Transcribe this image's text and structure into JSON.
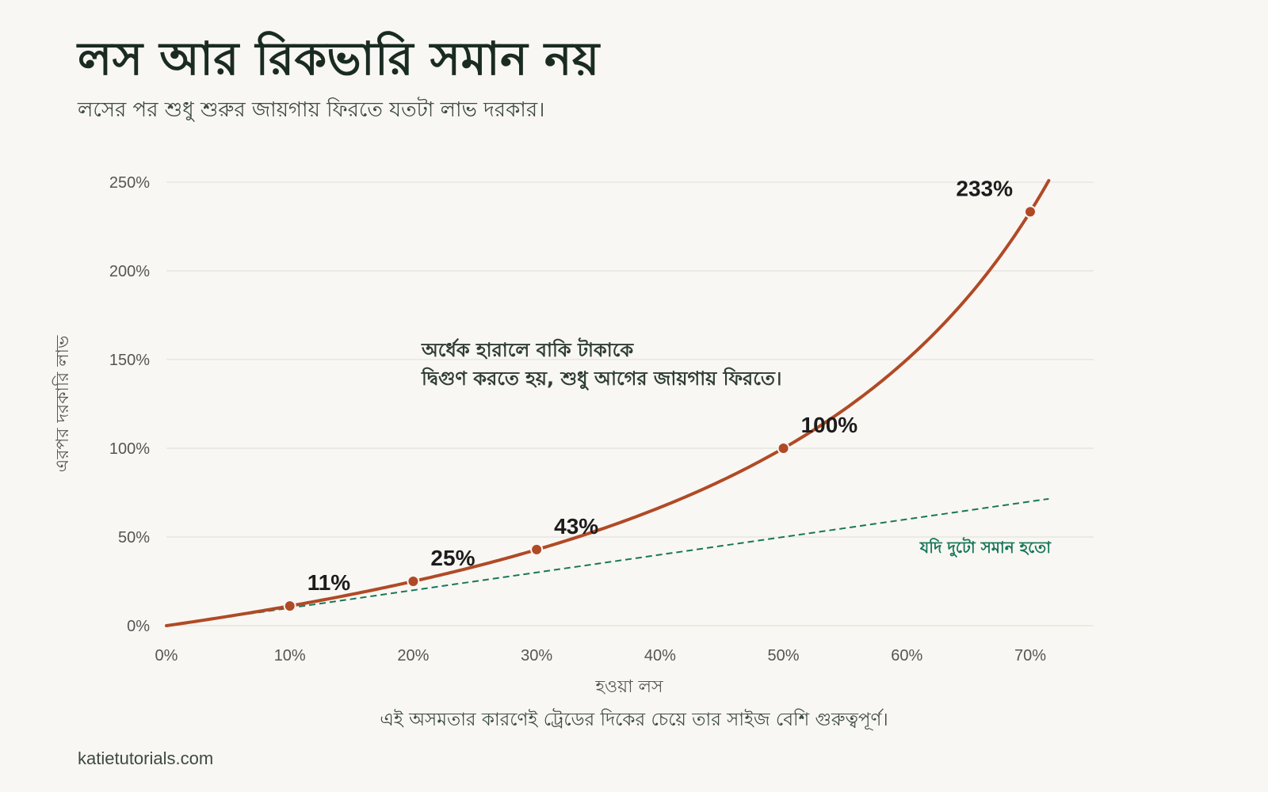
{
  "header": {
    "title": "লস আর রিকভারি সমান নয়",
    "subtitle": "লসের পর শুধু শুরুর জায়গায় ফিরতে যতটা লাভ দরকার।"
  },
  "footer": {
    "note": "এই অসমতার কারণেই ট্রেডের দিকের চেয়ে তার সাইজ বেশি গুরুত্বপূর্ণ।",
    "brand": "katietutorials.com"
  },
  "colors": {
    "curve": "#b04a26",
    "reference": "#17775a",
    "grid": "#e3e1dc",
    "background": "#f9f7f3"
  },
  "chart_data": {
    "type": "line",
    "xlabel": "হওয়া লস",
    "ylabel": "এরপর দরকারি লাভ",
    "xlim": [
      0,
      75
    ],
    "ylim": [
      0,
      250
    ],
    "xticks": [
      0,
      10,
      20,
      30,
      40,
      50,
      60,
      70
    ],
    "yticks": [
      0,
      50,
      100,
      150,
      200,
      250
    ],
    "xtick_labels": [
      "0%",
      "10%",
      "20%",
      "30%",
      "40%",
      "50%",
      "60%",
      "70%"
    ],
    "ytick_labels": [
      "0%",
      "50%",
      "100%",
      "150%",
      "200%",
      "250%"
    ],
    "grid": "horizontal",
    "series": [
      {
        "type": "curve",
        "formula": "x / (100 - x) * 100",
        "x_range": [
          0,
          71.5
        ]
      },
      {
        "name": "যদি দুটো সমান হতো",
        "type": "reference-line",
        "formula": "x",
        "x_range": [
          0,
          71.5
        ],
        "style": "dashed"
      }
    ],
    "highlighted_points": [
      {
        "x": 10,
        "y": 11.1,
        "label": "11%"
      },
      {
        "x": 20,
        "y": 25,
        "label": "25%"
      },
      {
        "x": 30,
        "y": 42.9,
        "label": "43%"
      },
      {
        "x": 50,
        "y": 100,
        "label": "100%"
      },
      {
        "x": 70,
        "y": 233.3,
        "label": "233%"
      }
    ],
    "annotation": [
      "অর্ধেক হারালে বাকি টাকাকে",
      "দ্বিগুণ করতে হয়, শুধু আগের জায়গায় ফিরতে।"
    ]
  }
}
